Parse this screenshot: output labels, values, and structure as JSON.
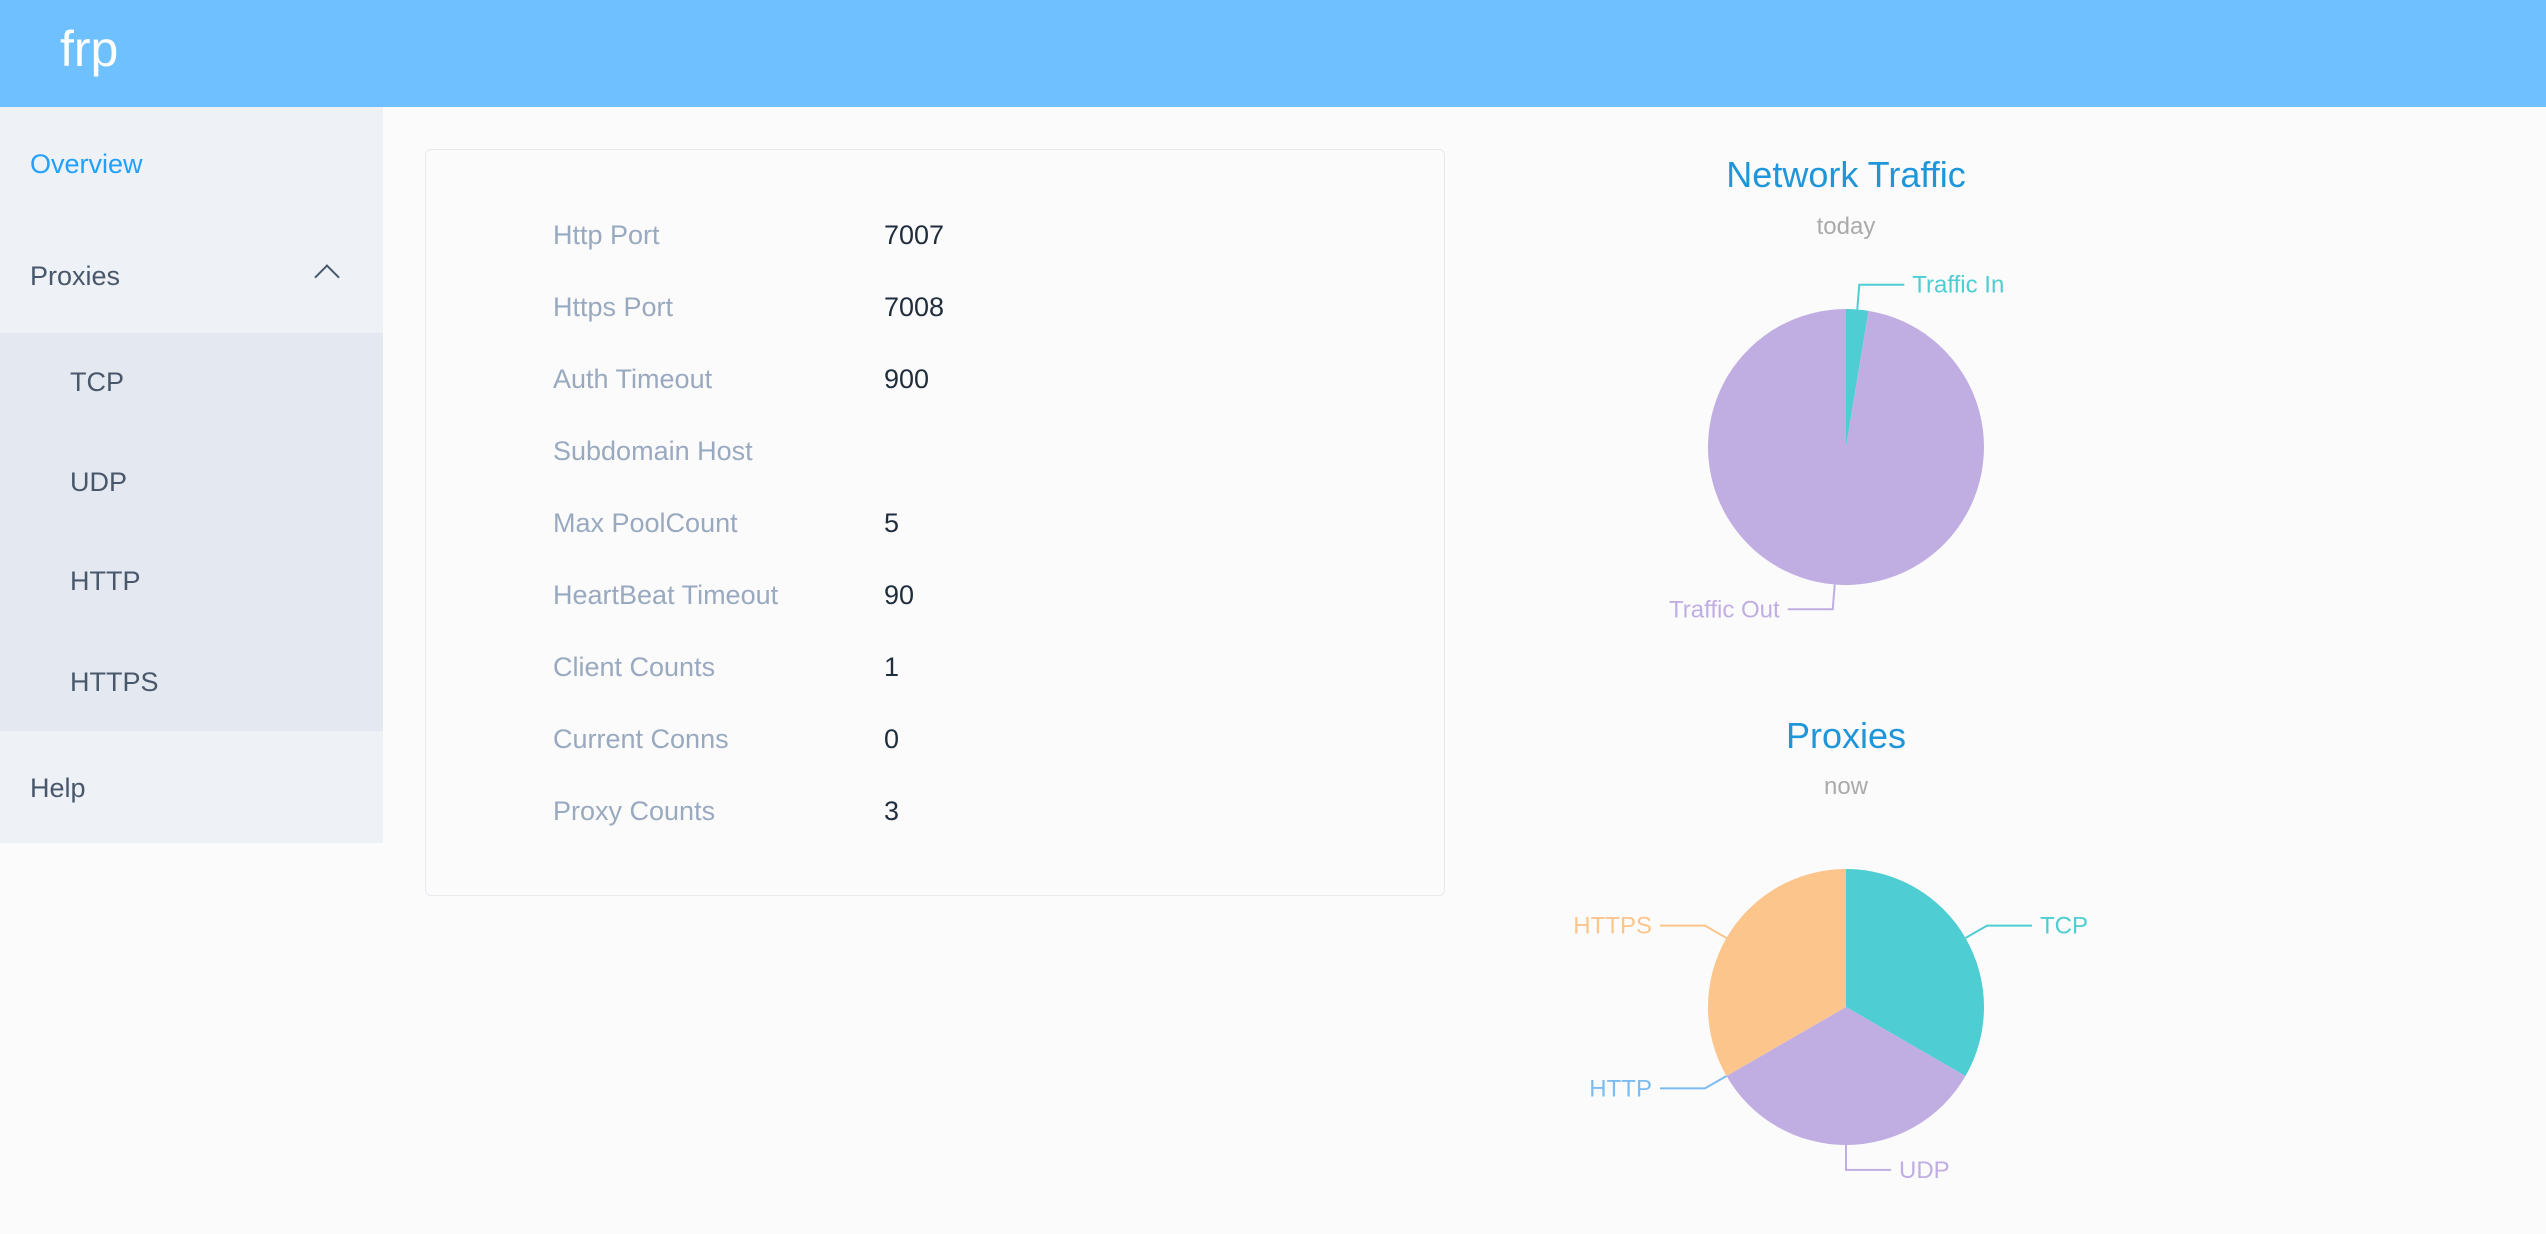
{
  "header": {
    "brand": "frp"
  },
  "sidebar": {
    "overview": "Overview",
    "proxies": "Proxies",
    "sub_items": [
      "TCP",
      "UDP",
      "HTTP",
      "HTTPS"
    ],
    "help": "Help",
    "active_color": "#20a0ff"
  },
  "overview": {
    "rows": [
      {
        "label": "Http Port",
        "value": "7007"
      },
      {
        "label": "Https Port",
        "value": "7008"
      },
      {
        "label": "Auth Timeout",
        "value": "900"
      },
      {
        "label": "Subdomain Host",
        "value": ""
      },
      {
        "label": "Max PoolCount",
        "value": "5"
      },
      {
        "label": "HeartBeat Timeout",
        "value": "90"
      },
      {
        "label": "Client Counts",
        "value": "1"
      },
      {
        "label": "Current Conns",
        "value": "0"
      },
      {
        "label": "Proxy Counts",
        "value": "3"
      }
    ]
  },
  "chart_data": [
    {
      "type": "pie",
      "title": "Network Traffic",
      "subtitle": "today",
      "categories": [
        "Traffic In",
        "Traffic Out"
      ],
      "values": [
        2.6,
        97.4
      ],
      "colors": [
        "#4ecdd2",
        "#c0aee3"
      ]
    },
    {
      "type": "pie",
      "title": "Proxies",
      "subtitle": "now",
      "categories": [
        "TCP",
        "UDP",
        "HTTP",
        "HTTPS"
      ],
      "values": [
        1,
        1,
        0,
        1
      ],
      "colors": [
        "#4ecdd2",
        "#c0aee3",
        "#7cbcf0",
        "#fcc58c"
      ]
    }
  ]
}
